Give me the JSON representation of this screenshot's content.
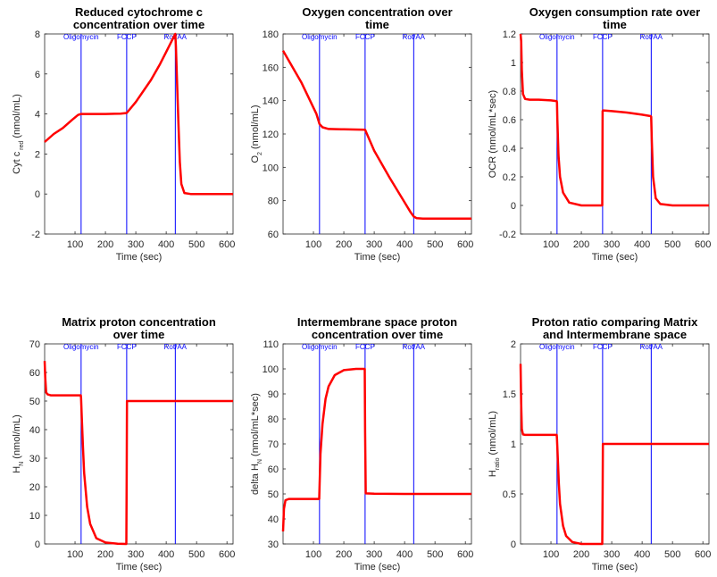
{
  "figure": {
    "background": "#ffffff",
    "axis_color": "#262626",
    "series_color": "#ff0000",
    "event_color": "#0000ff"
  },
  "events": [
    {
      "label": "Oligomycin",
      "x": 120
    },
    {
      "label": "FCCP",
      "x": 270
    },
    {
      "label": "Rot/AA",
      "x": 430
    }
  ],
  "chart_data": [
    {
      "type": "line",
      "title": [
        "Reduced cytochrome c",
        "concentration over time"
      ],
      "xlabel": "Time (sec)",
      "ylabel": [
        [
          "Cyt c",
          "n"
        ],
        [
          " red",
          "sub"
        ],
        [
          " (nmol/mL)",
          "n"
        ]
      ],
      "xlim": [
        0,
        620
      ],
      "ylim": [
        -2,
        8
      ],
      "xticks": [
        100,
        200,
        300,
        400,
        500,
        600
      ],
      "yticks": [
        -2,
        0,
        2,
        4,
        6,
        8
      ],
      "grid": false,
      "series": [
        {
          "x": [
            0,
            30,
            60,
            90,
            110,
            120,
            150,
            200,
            250,
            270,
            300,
            350,
            380,
            400,
            420,
            428,
            430,
            432,
            435,
            440,
            445,
            450,
            460,
            480,
            520,
            620
          ],
          "y": [
            2.6,
            3.0,
            3.3,
            3.7,
            3.95,
            4.0,
            4.0,
            4.0,
            4.02,
            4.05,
            4.6,
            5.7,
            6.5,
            7.1,
            7.7,
            7.95,
            8.0,
            7.4,
            6.0,
            3.7,
            1.6,
            0.5,
            0.05,
            0.0,
            0.0,
            0.0
          ]
        }
      ]
    },
    {
      "type": "line",
      "title": [
        "Oxygen concentration over",
        "time"
      ],
      "xlabel": "Time (sec)",
      "ylabel": [
        [
          "O",
          "n"
        ],
        [
          "2",
          "sub"
        ],
        [
          " (nmol/mL)",
          "n"
        ]
      ],
      "xlim": [
        0,
        620
      ],
      "ylim": [
        60,
        180
      ],
      "xticks": [
        100,
        200,
        300,
        400,
        500,
        600
      ],
      "yticks": [
        60,
        80,
        100,
        120,
        140,
        160,
        180
      ],
      "grid": false,
      "series": [
        {
          "x": [
            0,
            60,
            110,
            120,
            130,
            150,
            200,
            270,
            300,
            350,
            400,
            420,
            430,
            440,
            460,
            500,
            620
          ],
          "y": [
            170,
            151,
            132,
            126,
            124,
            123,
            122.8,
            122.5,
            110,
            94,
            79,
            73,
            70.5,
            69.5,
            69.2,
            69.2,
            69.2
          ]
        }
      ]
    },
    {
      "type": "line",
      "title": [
        "Oxygen consumption rate over",
        "time"
      ],
      "xlabel": "Time (sec)",
      "ylabel": [
        [
          "OCR (nmol/mL*sec)",
          "n"
        ]
      ],
      "xlim": [
        0,
        620
      ],
      "ylim": [
        -0.2,
        1.2
      ],
      "xticks": [
        100,
        200,
        300,
        400,
        500,
        600
      ],
      "yticks": [
        -0.2,
        0,
        0.2,
        0.4,
        0.6,
        0.8,
        1,
        1.2
      ],
      "grid": false,
      "series": [
        {
          "x": [
            0,
            2,
            4,
            8,
            15,
            30,
            60,
            100,
            119,
            120,
            121,
            125,
            130,
            140,
            160,
            200,
            260,
            269,
            270,
            271,
            300,
            350,
            400,
            428,
            430,
            432,
            436,
            445,
            460,
            500,
            620
          ],
          "y": [
            1.2,
            1.15,
            0.95,
            0.78,
            0.745,
            0.74,
            0.74,
            0.735,
            0.73,
            0.72,
            0.6,
            0.35,
            0.2,
            0.09,
            0.02,
            0.0,
            0.0,
            0.0,
            0.66,
            0.665,
            0.66,
            0.65,
            0.635,
            0.625,
            0.62,
            0.45,
            0.2,
            0.05,
            0.01,
            0.0,
            0.0
          ]
        }
      ]
    },
    {
      "type": "line",
      "title": [
        "Matrix proton concentration",
        "over time"
      ],
      "xlabel": "Time (sec)",
      "ylabel": [
        [
          "H",
          "n"
        ],
        [
          "N",
          "sub"
        ],
        [
          " (nmol/mL)",
          "n"
        ]
      ],
      "xlim": [
        0,
        620
      ],
      "ylim": [
        0,
        70
      ],
      "xticks": [
        100,
        200,
        300,
        400,
        500,
        600
      ],
      "yticks": [
        0,
        10,
        20,
        30,
        40,
        50,
        60,
        70
      ],
      "grid": false,
      "series": [
        {
          "x": [
            0,
            2,
            5,
            10,
            20,
            60,
            100,
            119,
            120,
            122,
            126,
            130,
            140,
            150,
            170,
            200,
            240,
            269,
            270,
            271,
            300,
            400,
            500,
            620
          ],
          "y": [
            64,
            58,
            53,
            52.3,
            52,
            52,
            52,
            52,
            51,
            45,
            34,
            25,
            13,
            7,
            2,
            0.5,
            0.1,
            0.0,
            25,
            50,
            50,
            50,
            50,
            50
          ]
        }
      ]
    },
    {
      "type": "line",
      "title": [
        "Intermembrane space proton",
        "concentration over time"
      ],
      "xlabel": "Time (sec)",
      "ylabel": [
        [
          "delta H",
          "n"
        ],
        [
          "N",
          "sub"
        ],
        [
          " (nmol/mL*sec)",
          "n"
        ]
      ],
      "xlim": [
        0,
        620
      ],
      "ylim": [
        30,
        110
      ],
      "xticks": [
        100,
        200,
        300,
        400,
        500,
        600
      ],
      "yticks": [
        30,
        40,
        50,
        60,
        70,
        80,
        90,
        100,
        110
      ],
      "grid": false,
      "series": [
        {
          "x": [
            0,
            3,
            8,
            20,
            60,
            119,
            120,
            123,
            130,
            140,
            150,
            170,
            200,
            240,
            269,
            270,
            272,
            300,
            400,
            500,
            620
          ],
          "y": [
            35,
            44,
            47.5,
            48,
            48,
            48,
            52,
            66,
            78,
            88,
            93,
            97.5,
            99.5,
            100,
            100,
            75,
            50.2,
            50.1,
            50,
            50,
            50
          ]
        }
      ]
    },
    {
      "type": "line",
      "title": [
        "Proton ratio comparing Matrix",
        "and Intermembrane space"
      ],
      "xlabel": "Time (sec)",
      "ylabel": [
        [
          "H",
          "n"
        ],
        [
          "ratio",
          "sub"
        ],
        [
          " (nmol/mL)",
          "n"
        ]
      ],
      "xlim": [
        0,
        620
      ],
      "ylim": [
        0,
        2
      ],
      "xticks": [
        100,
        200,
        300,
        400,
        500,
        600
      ],
      "yticks": [
        0,
        0.5,
        1,
        1.5,
        2
      ],
      "grid": false,
      "series": [
        {
          "x": [
            0,
            2,
            4,
            8,
            15,
            40,
            100,
            119,
            120,
            122,
            126,
            130,
            140,
            150,
            170,
            200,
            240,
            269,
            270,
            271,
            300,
            400,
            500,
            620
          ],
          "y": [
            1.8,
            1.4,
            1.15,
            1.095,
            1.09,
            1.09,
            1.09,
            1.09,
            1.05,
            0.9,
            0.6,
            0.4,
            0.18,
            0.08,
            0.02,
            0.0,
            0.0,
            0.0,
            0.5,
            1.0,
            1.0,
            1.0,
            1.0,
            1.0
          ]
        }
      ]
    }
  ]
}
